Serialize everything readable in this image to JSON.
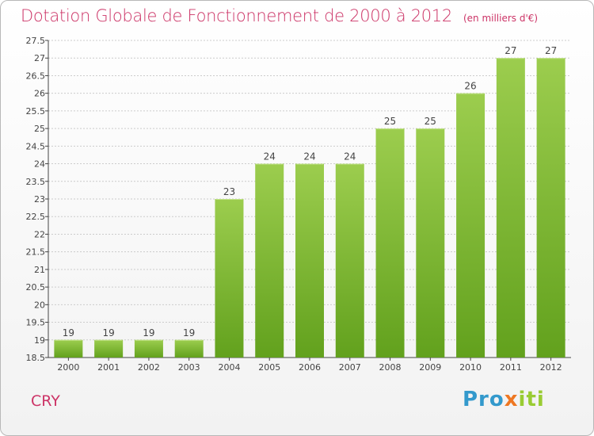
{
  "title": "Dotation Globale de Fonctionnement de 2000 à 2012",
  "unit_note": "(en milliers d'€)",
  "commune": "CRY",
  "logo": {
    "p1": "Pro",
    "p2": "x",
    "p3": "iti"
  },
  "colors": {
    "bar_light": "#9ccd4e",
    "bar_dark": "#62a11d",
    "title": "#cc3366",
    "grid": "#cccccc"
  },
  "chart_data": {
    "type": "bar",
    "title": "Dotation Globale de Fonctionnement de 2000 à 2012",
    "ylabel": "en milliers d'€",
    "categories": [
      "2000",
      "2001",
      "2002",
      "2003",
      "2004",
      "2005",
      "2006",
      "2007",
      "2008",
      "2009",
      "2010",
      "2011",
      "2012"
    ],
    "values": [
      19,
      19,
      19,
      19,
      23,
      24,
      24,
      24,
      25,
      25,
      26,
      27,
      27
    ],
    "data_labels": [
      "19",
      "19",
      "19",
      "19",
      "23",
      "24",
      "24",
      "24",
      "25",
      "25",
      "26",
      "27",
      "27"
    ],
    "ylim": [
      18.5,
      27.5
    ],
    "yticks": [
      "18.5",
      "19",
      "19.5",
      "20",
      "20.5",
      "21",
      "21.5",
      "22",
      "22.5",
      "23",
      "23.5",
      "24",
      "24.5",
      "25",
      "25.5",
      "26",
      "26.5",
      "27",
      "27.5"
    ],
    "grid": true
  }
}
